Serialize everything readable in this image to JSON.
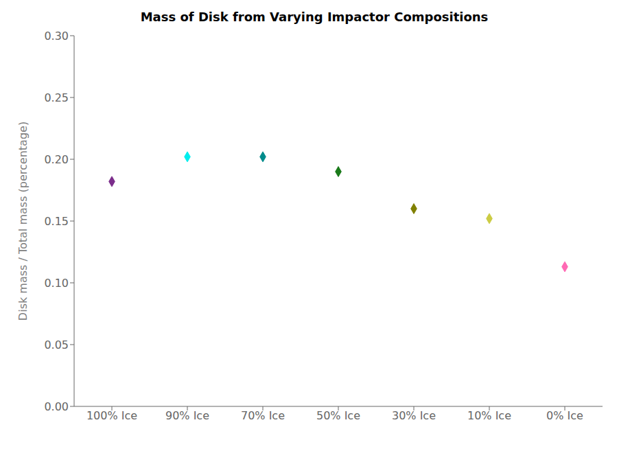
{
  "chart_data": {
    "type": "scatter",
    "title": "Mass of Disk from Varying Impactor Compositions",
    "ylabel": "Disk mass / Total mass (percentage)",
    "categories": [
      "100% Ice",
      "90% Ice",
      "70% Ice",
      "50% Ice",
      "30% Ice",
      "10% Ice",
      "0% Ice"
    ],
    "values": [
      0.182,
      0.202,
      0.202,
      0.19,
      0.16,
      0.152,
      0.113
    ],
    "colors": [
      "#7B2D8B",
      "#00EEEE",
      "#008B8B",
      "#1A7A1A",
      "#808000",
      "#CCCC44",
      "#FF69B4"
    ],
    "marker": "diamond",
    "ylim": [
      0.0,
      0.3
    ],
    "yticks": [
      {
        "value": 0.0,
        "label": "0.00"
      },
      0.05,
      {
        "value": 0.1,
        "label": "0.10"
      },
      0.15,
      {
        "value": 0.2,
        "label": "0.20"
      },
      0.25,
      {
        "value": 0.3,
        "label": "0.30"
      }
    ],
    "grid": false
  }
}
